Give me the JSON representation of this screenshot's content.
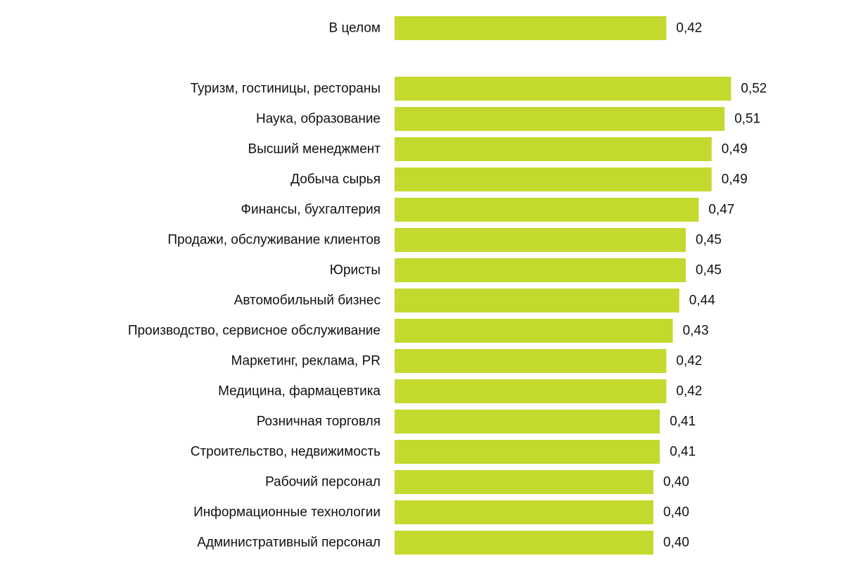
{
  "chart_data": {
    "type": "bar",
    "orientation": "horizontal",
    "bar_color": "#c4d92e",
    "text_color": "#111111",
    "grid": false,
    "legend": "none",
    "xlim": [
      0,
      0.6
    ],
    "categories": [
      "В целом",
      "Туризм, гостиницы, рестораны",
      "Наука, образование",
      "Высший менеджмент",
      "Добыча сырья",
      "Финансы, бухгалтерия",
      "Продажи, обслуживание клиентов",
      "Юристы",
      "Автомобильный бизнес",
      "Производство, сервисное обслуживание",
      "Маркетинг, реклама, PR",
      "Медицина, фармацевтика",
      "Розничная торговля",
      "Строительство, недвижимость",
      "Рабочий персонал",
      "Информационные технологии",
      "Административный персонал"
    ],
    "values": [
      0.42,
      0.52,
      0.51,
      0.49,
      0.49,
      0.47,
      0.45,
      0.45,
      0.44,
      0.43,
      0.42,
      0.42,
      0.41,
      0.41,
      0.4,
      0.4,
      0.4
    ],
    "value_labels": [
      "0,42",
      "0,52",
      "0,51",
      "0,49",
      "0,49",
      "0,47",
      "0,45",
      "0,45",
      "0,44",
      "0,43",
      "0,42",
      "0,42",
      "0,41",
      "0,41",
      "0,40",
      "0,40",
      "0,40"
    ]
  }
}
